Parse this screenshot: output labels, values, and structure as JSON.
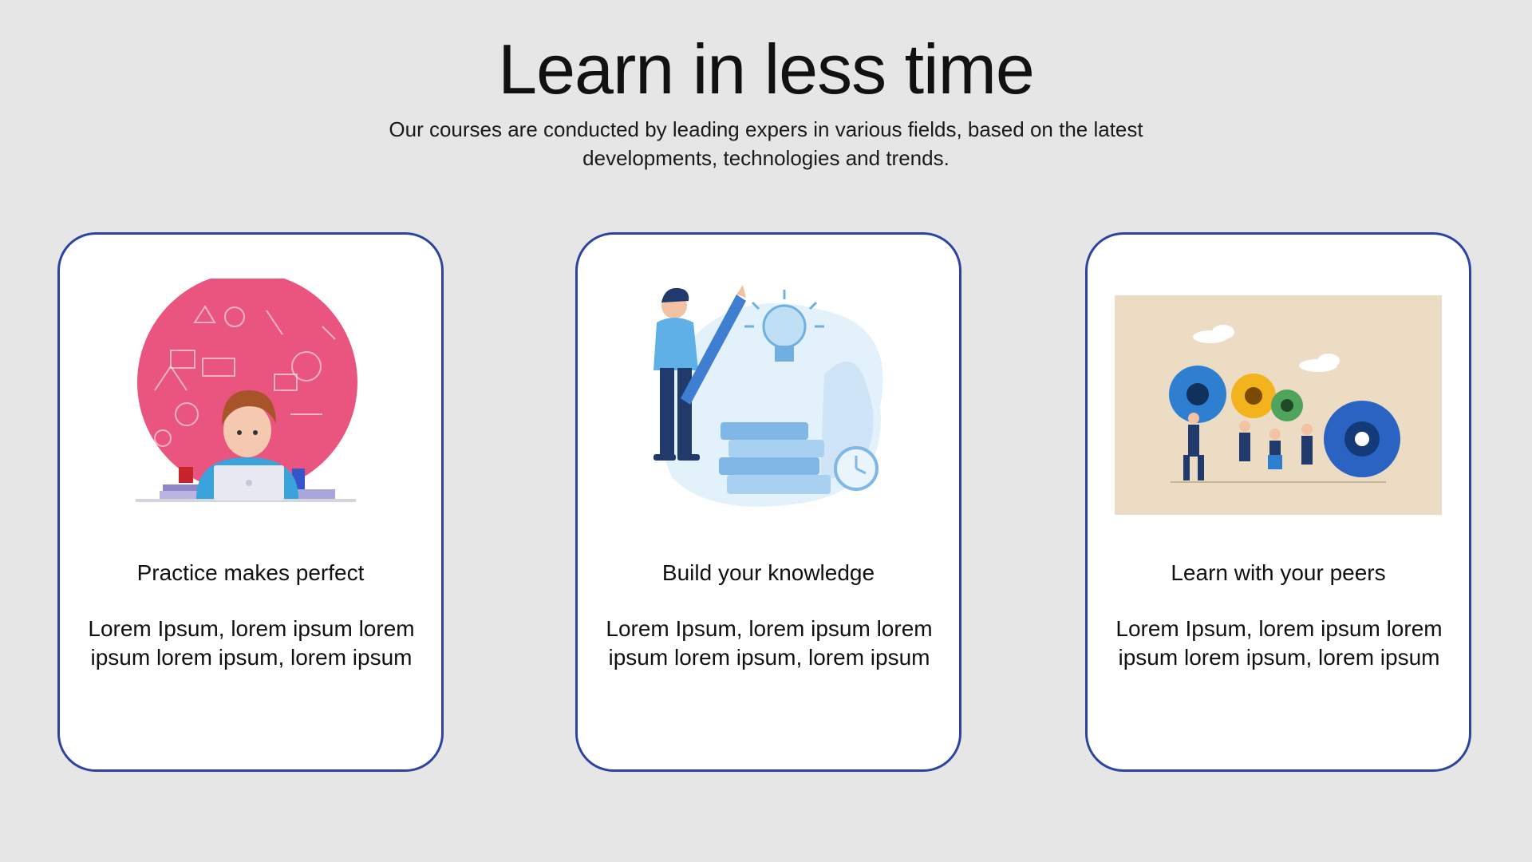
{
  "header": {
    "title": "Learn in less time",
    "subtitle": "Our courses are conducted by leading expers in various fields, based on the latest developments, technologies and trends."
  },
  "cards": [
    {
      "title": "Practice makes perfect",
      "body": "Lorem Ipsum, lorem ipsum lorem ipsum lorem ipsum, lorem ipsum",
      "illustration": "student-laptop-illustration"
    },
    {
      "title": "Build your knowledge",
      "body": "Lorem Ipsum, lorem ipsum lorem ipsum lorem ipsum, lorem ipsum",
      "illustration": "books-lightbulb-illustration"
    },
    {
      "title": "Learn with your peers",
      "body": "Lorem Ipsum, lorem ipsum lorem ipsum lorem ipsum, lorem ipsum",
      "illustration": "team-gears-illustration"
    }
  ],
  "colors": {
    "background": "#e6e6e6",
    "card_border": "#2c44a0",
    "pink": "#e9557f",
    "light_blue": "#cfe5f7",
    "beige": "#ecdcc3"
  }
}
